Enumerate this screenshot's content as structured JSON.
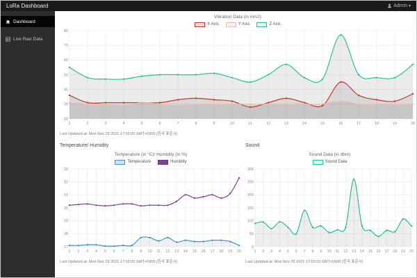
{
  "navbar": {
    "brand": "LoRa Dashboard",
    "user": "Admin"
  },
  "sidebar": {
    "items": [
      {
        "label": "Dashboard",
        "icon": "home-icon",
        "active": true
      },
      {
        "label": "Live Raw Data",
        "icon": "table-icon",
        "active": false
      }
    ]
  },
  "sections": {
    "temperature_heading": "Temperature/ Humidity",
    "sound_heading": "Sound"
  },
  "last_updated": "Last Updated at: Mon Nov 29 2021 17:03:03 GMT+0900 (한국 표준시)",
  "chart_data": [
    {
      "type": "area",
      "title": "Vibration Data (in m/s2)",
      "categories": [
        1,
        2,
        3,
        4,
        5,
        6,
        7,
        8,
        9,
        10,
        11,
        12,
        13,
        14,
        15,
        16,
        17,
        18,
        19,
        20
      ],
      "ylim": [
        20,
        80
      ],
      "ytick_step": 10,
      "grid": true,
      "legend_position": "top",
      "series": [
        {
          "name": "X Axis",
          "color": "#c0392b",
          "fill": "rgba(0,0,0,0.08)",
          "legend_fill": "#f6e3e0",
          "legend_border": "#c0392b",
          "values": [
            36,
            31,
            31,
            31,
            31,
            31,
            33,
            34,
            33,
            32,
            28,
            31,
            34,
            31,
            29,
            45,
            36,
            33,
            32,
            37
          ]
        },
        {
          "name": "Y Axis",
          "color": "#f2b9ae",
          "fill": "rgba(0,0,0,0.08)",
          "legend_fill": "#fdf4f2",
          "legend_border": "#f2b9ae",
          "values": [
            31,
            30,
            30,
            29,
            31,
            30,
            29,
            30,
            30,
            30,
            30,
            30,
            30,
            30,
            30,
            32,
            30,
            30,
            30,
            30
          ]
        },
        {
          "name": "Z Axis",
          "color": "#2abf96",
          "fill": "rgba(0,0,0,0.08)",
          "legend_fill": "#e2f6f0",
          "legend_border": "#2abf96",
          "values": [
            55,
            48,
            47,
            47,
            49,
            50,
            50,
            50,
            51,
            48,
            45,
            50,
            57,
            48,
            47,
            77,
            50,
            48,
            48,
            57
          ]
        }
      ]
    },
    {
      "type": "area",
      "title": "Temperature (in °C)/ Humidity (in %)",
      "categories": [
        1,
        2,
        3,
        4,
        5,
        6,
        7,
        8,
        9,
        10,
        11,
        12,
        13,
        14,
        15,
        16,
        17,
        18,
        19,
        20
      ],
      "ylim": [
        27,
        33
      ],
      "ytick_step": 1,
      "grid": true,
      "legend_position": "top",
      "series": [
        {
          "name": "Temperature",
          "color": "#3e95cd",
          "fill": "rgba(0,0,0,0.06)",
          "legend_fill": "#cfe2f3",
          "legend_border": "#3e95cd",
          "values": [
            27.1,
            27.1,
            27.15,
            27.15,
            27.05,
            27.05,
            27.1,
            27.1,
            27.7,
            27.7,
            27.45,
            27.7,
            27.35,
            27.5,
            27.4,
            27.4,
            27.5,
            27.5,
            27.4,
            27.1
          ]
        },
        {
          "name": "Humidity",
          "color": "#7d4397",
          "fill": null,
          "legend_fill": "#7d4397",
          "legend_border": "#6a3585",
          "values": [
            30.2,
            30.25,
            30.3,
            30.2,
            30.15,
            30.2,
            30.3,
            30.3,
            30.15,
            30.2,
            30.2,
            30.2,
            30.5,
            31.0,
            30.75,
            30.85,
            31.0,
            30.75,
            31.1,
            32.3
          ]
        }
      ]
    },
    {
      "type": "area",
      "title": "Sound Data (in dbm)",
      "categories": [
        1,
        2,
        3,
        4,
        5,
        6,
        7,
        8,
        9,
        10,
        11,
        12,
        13,
        14,
        15,
        16,
        17,
        18,
        19,
        20
      ],
      "ylim": [
        0,
        300
      ],
      "ytick_step": 50,
      "grid": true,
      "legend_position": "top",
      "series": [
        {
          "name": "Sound Data",
          "color": "#2abf96",
          "fill": "rgba(0,0,0,0.07)",
          "legend_fill": "#e2f6f0",
          "legend_border": "#2abf96",
          "values": [
            90,
            95,
            70,
            96,
            75,
            50,
            140,
            75,
            80,
            55,
            65,
            75,
            260,
            80,
            63,
            40,
            63,
            58,
            107,
            80
          ]
        }
      ]
    }
  ]
}
